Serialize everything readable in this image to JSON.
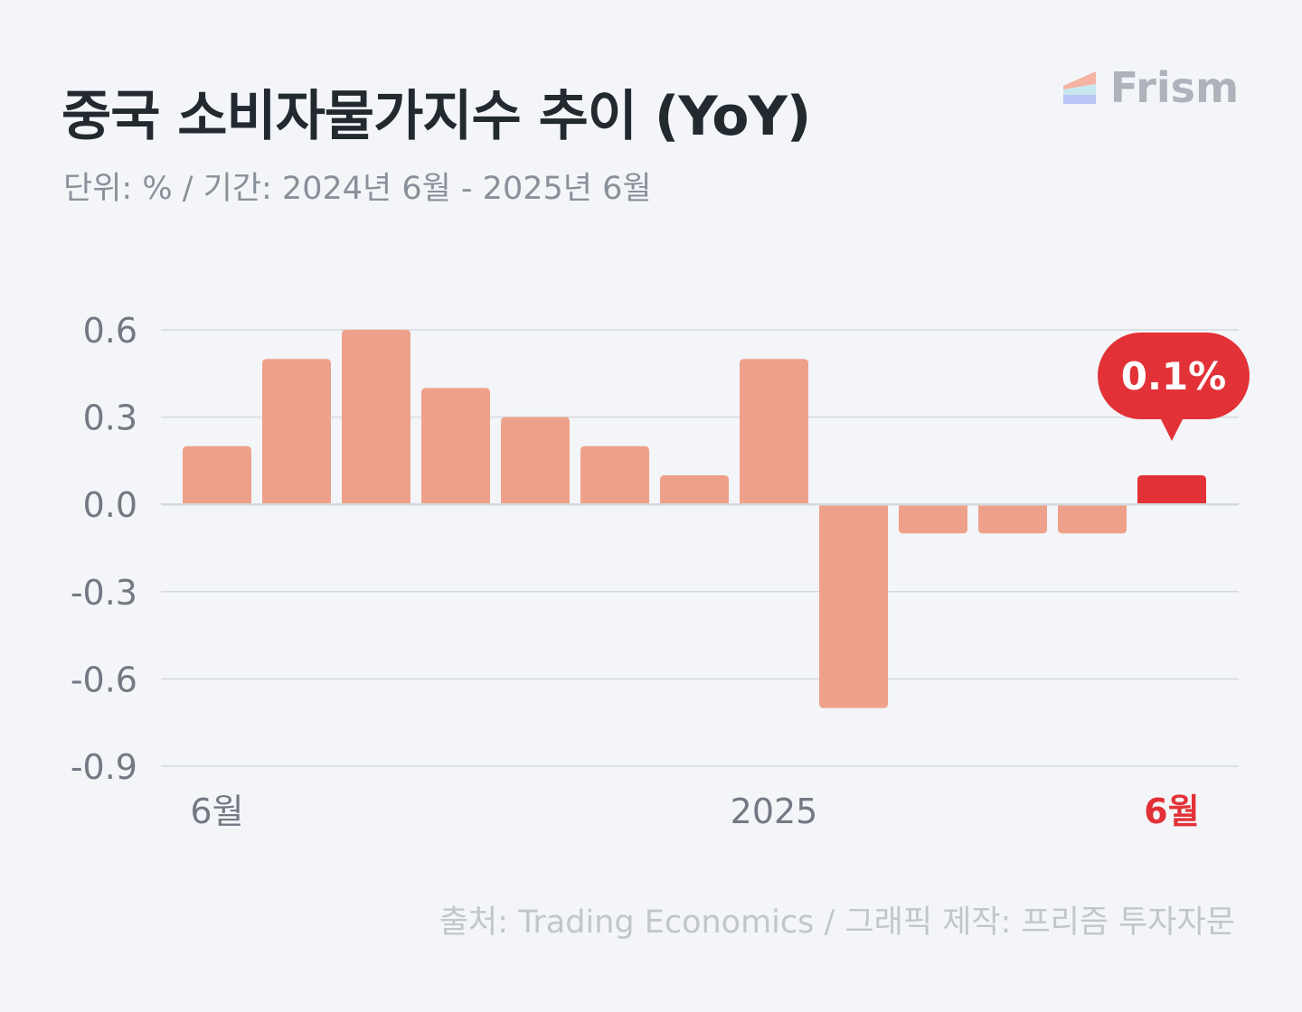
{
  "header": {
    "title": "중국 소비자물가지수 추이 (YoY)",
    "subtitle": "단위: % / 기간: 2024년 6월 - 2025년 6월"
  },
  "brand": {
    "name": "Frism",
    "icon": "frism-logo-icon"
  },
  "footer": {
    "source": "출처: Trading Economics / 그래픽 제작: 프리즘 투자자문"
  },
  "colors": {
    "bar": "#eea18a",
    "highlight": "#e23237",
    "grid": "#d5d9df",
    "axis_text": "#737882",
    "title": "#222a30"
  },
  "chart_data": {
    "type": "bar",
    "categories": [
      "2024-06",
      "2024-07",
      "2024-08",
      "2024-09",
      "2024-10",
      "2024-11",
      "2024-12",
      "2025-01",
      "2025-02",
      "2025-03",
      "2025-04",
      "2025-05",
      "2025-06"
    ],
    "values": [
      0.2,
      0.5,
      0.6,
      0.4,
      0.3,
      0.2,
      0.1,
      0.5,
      -0.7,
      -0.1,
      -0.1,
      -0.1,
      0.1
    ],
    "ylim": [
      -0.9,
      0.6
    ],
    "yticks": [
      "0.6",
      "0.3",
      "0.0",
      "-0.3",
      "-0.6",
      "-0.9"
    ],
    "ytick_values": [
      0.6,
      0.3,
      0.0,
      -0.3,
      -0.6,
      -0.9
    ],
    "xtick_labels": [
      {
        "index": 0,
        "label": "6월",
        "highlight": false
      },
      {
        "index": 7,
        "label": "2025",
        "highlight": false
      },
      {
        "index": 12,
        "label": "6월",
        "highlight": true
      }
    ],
    "highlight_index": 12,
    "callout": "0.1%",
    "grid": true,
    "legend": "none"
  }
}
